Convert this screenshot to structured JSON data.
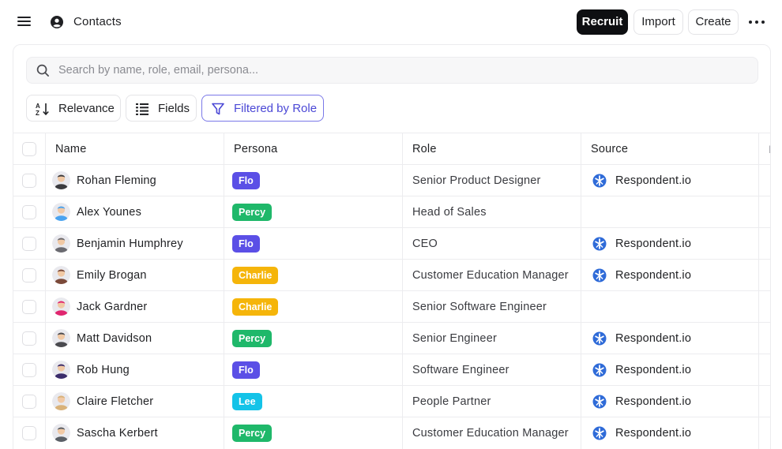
{
  "header": {
    "title": "Contacts",
    "recruit_label": "Recruit",
    "import_label": "Import",
    "create_label": "Create"
  },
  "search": {
    "placeholder": "Search by name, role, email, persona..."
  },
  "toolbar": {
    "relevance_label": "Relevance",
    "fields_label": "Fields",
    "filter_label": "Filtered by Role"
  },
  "table": {
    "columns": [
      "Name",
      "Persona",
      "Role",
      "Source"
    ],
    "rows": [
      {
        "name": "Rohan Fleming",
        "persona": "Flo",
        "role": "Senior Product Designer",
        "source": "Respondent.io"
      },
      {
        "name": "Alex Younes",
        "persona": "Percy",
        "role": "Head of Sales",
        "source": ""
      },
      {
        "name": "Benjamin Humphrey",
        "persona": "Flo",
        "role": "CEO",
        "source": "Respondent.io"
      },
      {
        "name": "Emily Brogan",
        "persona": "Charlie",
        "role": "Customer Education Manager",
        "source": "Respondent.io"
      },
      {
        "name": "Jack Gardner",
        "persona": "Charlie",
        "role": "Senior Software Engineer",
        "source": ""
      },
      {
        "name": "Matt Davidson",
        "persona": "Percy",
        "role": "Senior Engineer",
        "source": "Respondent.io"
      },
      {
        "name": "Rob Hung",
        "persona": "Flo",
        "role": "Software Engineer",
        "source": "Respondent.io"
      },
      {
        "name": "Claire Fletcher",
        "persona": "Lee",
        "role": "People Partner",
        "source": "Respondent.io"
      },
      {
        "name": "Sascha Kerbert",
        "persona": "Percy",
        "role": "Customer Education Manager",
        "source": "Respondent.io"
      }
    ]
  },
  "persona_colors": {
    "Flo": "#5b4fe6",
    "Percy": "#1fb86a",
    "Charlie": "#f5b50a",
    "Lee": "#14c3e8"
  },
  "avatar_colors": [
    "#3b3b3f",
    "#4aa3f0",
    "#6a6a70",
    "#7b4a3a",
    "#e0266f",
    "#4a4a4f",
    "#3b2c6b",
    "#d9b27a",
    "#5a5f66"
  ],
  "colors": {
    "accent": "#4b48d6",
    "primary_button": "#0e0f12",
    "respondent_blue": "#2f6bd8"
  }
}
